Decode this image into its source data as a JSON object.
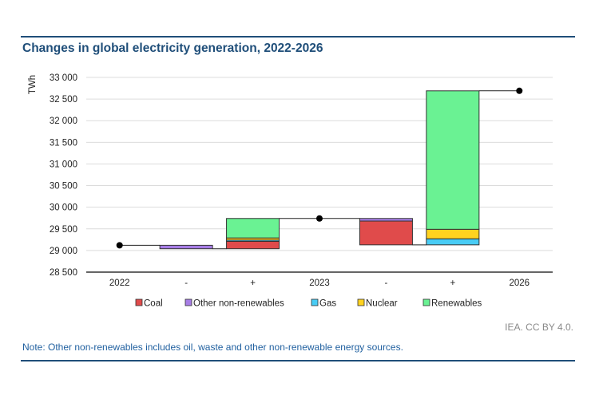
{
  "title": "Changes in global electricity generation, 2022-2026",
  "credit": "IEA. CC BY 4.0.",
  "note": "Note: Other non-renewables includes oil, waste and other non-renewable energy sources.",
  "chart_data": {
    "type": "waterfall",
    "ylabel": "TWh",
    "ylim": [
      28500,
      33000
    ],
    "yticks": [
      28500,
      29000,
      29500,
      30000,
      30500,
      31000,
      31500,
      32000,
      32500,
      33000
    ],
    "ytick_labels": [
      "28 500",
      "29 000",
      "29 500",
      "30 000",
      "30 500",
      "31 000",
      "31 500",
      "32 000",
      "32 500",
      "33 000"
    ],
    "grid": true,
    "legend_position": "bottom",
    "categories": [
      "2022",
      "-",
      "+",
      "2023",
      "-",
      "+",
      "2026"
    ],
    "series": [
      {
        "name": "Coal",
        "color": "#e04b4b"
      },
      {
        "name": "Other non-renewables",
        "color": "#a77de6"
      },
      {
        "name": "Gas",
        "color": "#48ccf5"
      },
      {
        "name": "Nuclear",
        "color": "#ffd21f"
      },
      {
        "name": "Renewables",
        "color": "#6af293"
      }
    ],
    "totals": {
      "2022": 29120,
      "2023": 29740,
      "2026": 32690
    },
    "changes": [
      {
        "category_index": 1,
        "components": {
          "Other non-renewables": -80
        }
      },
      {
        "category_index": 2,
        "components": {
          "Coal": 170,
          "Gas": 30,
          "Nuclear": 50,
          "Renewables": 450
        }
      },
      {
        "category_index": 4,
        "components": {
          "Other non-renewables": -60,
          "Coal": -550
        }
      },
      {
        "category_index": 5,
        "components": {
          "Gas": 140,
          "Nuclear": 220,
          "Renewables": 3200
        }
      }
    ]
  }
}
